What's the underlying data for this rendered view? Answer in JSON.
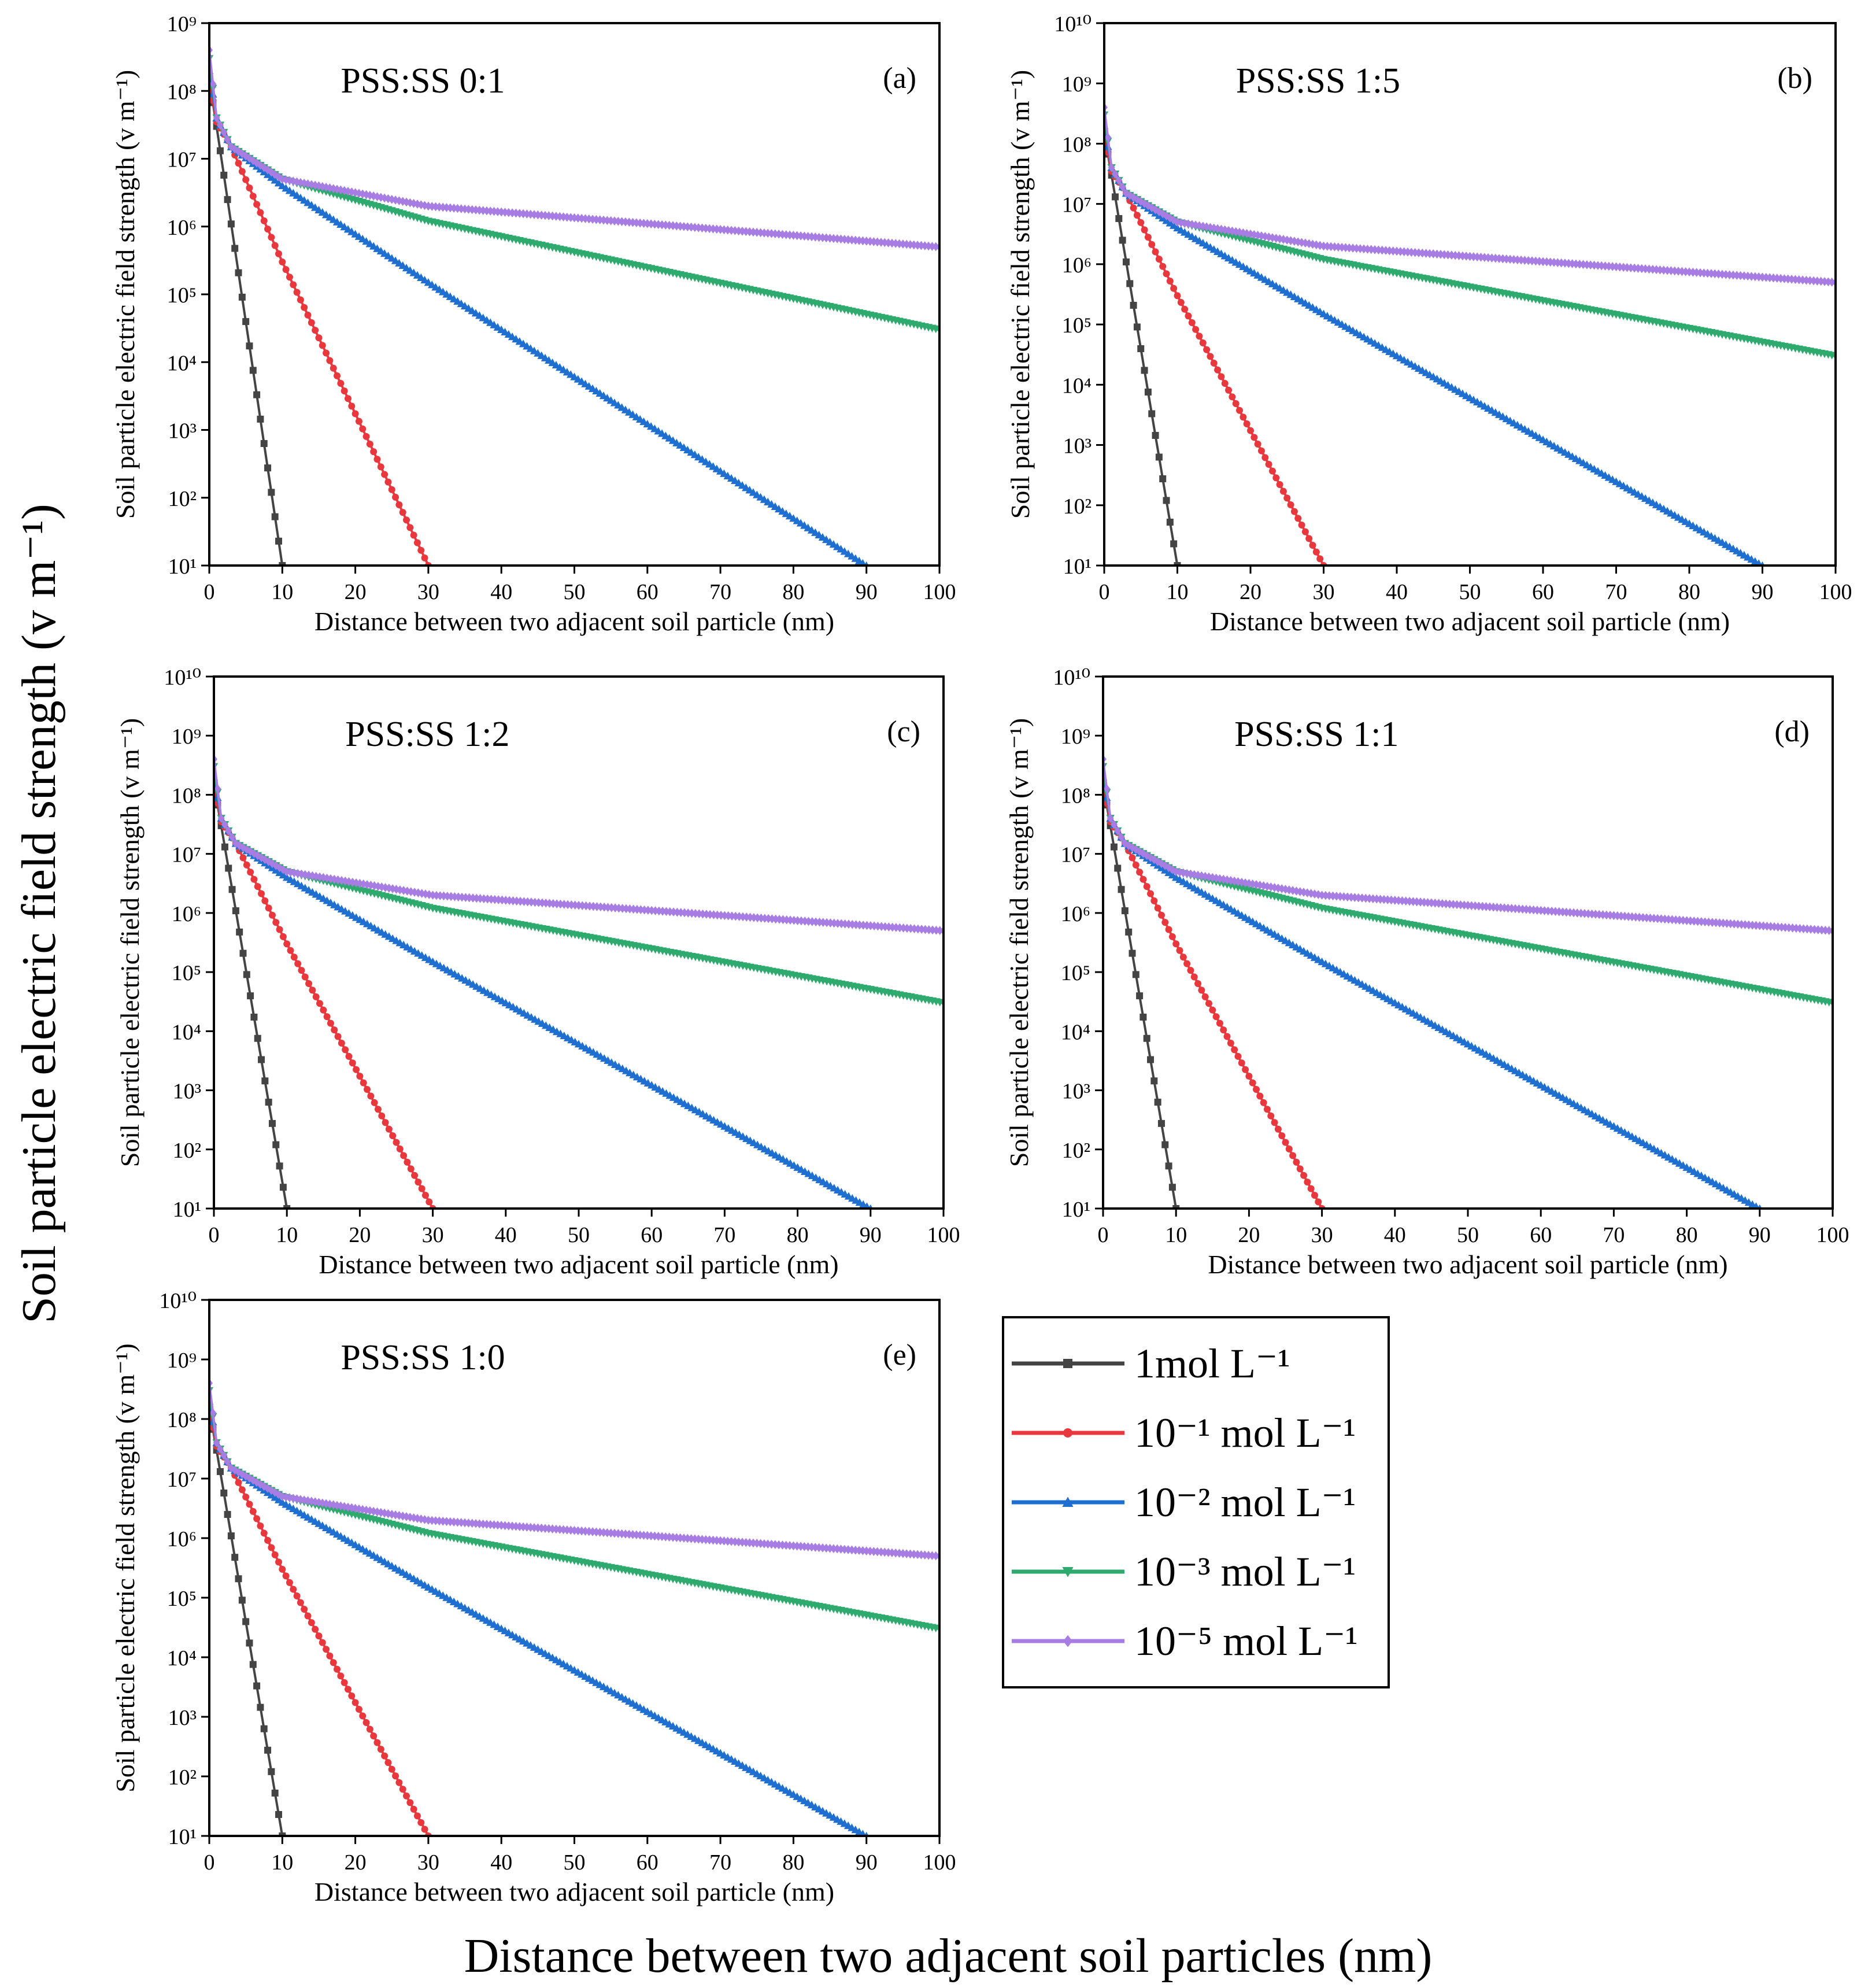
{
  "figure": {
    "global_ylabel": "Soil particle electric field strength (v m⁻¹)",
    "global_xlabel": "Distance between two adjacent soil particles (nm)"
  },
  "legend": {
    "items": [
      {
        "label": "1mol L⁻¹",
        "color": "#444444",
        "marker": "square"
      },
      {
        "label": "10⁻¹ mol L⁻¹",
        "color": "#e8383d",
        "marker": "circle"
      },
      {
        "label": "10⁻² mol L⁻¹",
        "color": "#1e6fd0",
        "marker": "triangle-up"
      },
      {
        "label": "10⁻³ mol L⁻¹",
        "color": "#2eaa6e",
        "marker": "triangle-down"
      },
      {
        "label": "10⁻⁵ mol L⁻¹",
        "color": "#a77de3",
        "marker": "diamond"
      }
    ]
  },
  "chart_data": [
    {
      "type": "line",
      "panel": "(a)",
      "title": "PSS:SS 0:1",
      "xlabel": "Distance between two adjacent soil particle (nm)",
      "ylabel": "Soil particle electric field strength (v m⁻¹)",
      "xlim": [
        0,
        100
      ],
      "ylim_log10": [
        1,
        9
      ],
      "xticks": [
        0,
        10,
        20,
        30,
        40,
        50,
        60,
        70,
        80,
        90,
        100
      ],
      "yscale": "log",
      "series": [
        {
          "name": "1mol L⁻¹",
          "x": [
            0,
            1,
            10
          ],
          "y": [
            150000000,
            30000000,
            10
          ]
        },
        {
          "name": "10⁻¹ mol L⁻¹",
          "x": [
            0,
            1,
            3,
            10,
            30
          ],
          "y": [
            150000000,
            35000000,
            15000000,
            300000,
            10
          ]
        },
        {
          "name": "10⁻² mol L⁻¹",
          "x": [
            0,
            1,
            3,
            10,
            30,
            90
          ],
          "y": [
            200000000,
            40000000,
            15000000,
            4000000,
            150000,
            10
          ]
        },
        {
          "name": "10⁻³ mol L⁻¹",
          "x": [
            0,
            1,
            3,
            10,
            30,
            100
          ],
          "y": [
            300000000,
            40000000,
            15000000,
            5000000,
            1200000,
            30000
          ]
        },
        {
          "name": "10⁻⁵ mol L⁻¹",
          "x": [
            0,
            1,
            3,
            10,
            30,
            100
          ],
          "y": [
            400000000,
            40000000,
            15000000,
            5000000,
            2000000,
            500000
          ]
        }
      ]
    },
    {
      "type": "line",
      "panel": "(b)",
      "title": "PSS:SS 1:5",
      "xlabel": "Distance between two adjacent soil particle (nm)",
      "ylabel": "Soil particle electric field strength (v m⁻¹)",
      "xlim": [
        0,
        100
      ],
      "ylim_log10": [
        1,
        10
      ],
      "xticks": [
        0,
        10,
        20,
        30,
        40,
        50,
        60,
        70,
        80,
        90,
        100
      ],
      "yscale": "log",
      "series": [
        {
          "name": "1mol L⁻¹",
          "x": [
            0,
            1,
            10
          ],
          "y": [
            150000000,
            30000000,
            10
          ]
        },
        {
          "name": "10⁻¹ mol L⁻¹",
          "x": [
            0,
            1,
            3,
            10,
            30
          ],
          "y": [
            150000000,
            35000000,
            15000000,
            300000,
            10
          ]
        },
        {
          "name": "10⁻² mol L⁻¹",
          "x": [
            0,
            1,
            3,
            10,
            30,
            90
          ],
          "y": [
            200000000,
            40000000,
            15000000,
            4000000,
            150000,
            10
          ]
        },
        {
          "name": "10⁻³ mol L⁻¹",
          "x": [
            0,
            1,
            3,
            10,
            30,
            100
          ],
          "y": [
            300000000,
            40000000,
            15000000,
            5000000,
            1200000,
            30000
          ]
        },
        {
          "name": "10⁻⁵ mol L⁻¹",
          "x": [
            0,
            1,
            3,
            10,
            30,
            100
          ],
          "y": [
            400000000,
            40000000,
            15000000,
            5000000,
            2000000,
            500000
          ]
        }
      ]
    },
    {
      "type": "line",
      "panel": "(c)",
      "title": "PSS:SS 1:2",
      "xlabel": "Distance between two adjacent soil particle (nm)",
      "ylabel": "Soil particle electric field strength (v m⁻¹)",
      "xlim": [
        0,
        100
      ],
      "ylim_log10": [
        1,
        10
      ],
      "xticks": [
        0,
        10,
        20,
        30,
        40,
        50,
        60,
        70,
        80,
        90,
        100
      ],
      "yscale": "log",
      "series": [
        {
          "name": "1mol L⁻¹",
          "x": [
            0,
            1,
            10
          ],
          "y": [
            150000000,
            30000000,
            10
          ]
        },
        {
          "name": "10⁻¹ mol L⁻¹",
          "x": [
            0,
            1,
            3,
            10,
            30
          ],
          "y": [
            150000000,
            35000000,
            15000000,
            300000,
            10
          ]
        },
        {
          "name": "10⁻² mol L⁻¹",
          "x": [
            0,
            1,
            3,
            10,
            30,
            90
          ],
          "y": [
            200000000,
            40000000,
            15000000,
            4000000,
            150000,
            10
          ]
        },
        {
          "name": "10⁻³ mol L⁻¹",
          "x": [
            0,
            1,
            3,
            10,
            30,
            100
          ],
          "y": [
            300000000,
            40000000,
            15000000,
            5000000,
            1200000,
            30000
          ]
        },
        {
          "name": "10⁻⁵ mol L⁻¹",
          "x": [
            0,
            1,
            3,
            10,
            30,
            100
          ],
          "y": [
            400000000,
            40000000,
            15000000,
            5000000,
            2000000,
            500000
          ]
        }
      ]
    },
    {
      "type": "line",
      "panel": "(d)",
      "title": "PSS:SS 1:1",
      "xlabel": "Distance between two adjacent soil particle (nm)",
      "ylabel": "Soil particle electric field strength (v m⁻¹)",
      "xlim": [
        0,
        100
      ],
      "ylim_log10": [
        1,
        10
      ],
      "xticks": [
        0,
        10,
        20,
        30,
        40,
        50,
        60,
        70,
        80,
        90,
        100
      ],
      "yscale": "log",
      "series": [
        {
          "name": "1mol L⁻¹",
          "x": [
            0,
            1,
            10
          ],
          "y": [
            150000000,
            30000000,
            10
          ]
        },
        {
          "name": "10⁻¹ mol L⁻¹",
          "x": [
            0,
            1,
            3,
            10,
            30
          ],
          "y": [
            150000000,
            35000000,
            15000000,
            300000,
            10
          ]
        },
        {
          "name": "10⁻² mol L⁻¹",
          "x": [
            0,
            1,
            3,
            10,
            30,
            90
          ],
          "y": [
            200000000,
            40000000,
            15000000,
            4000000,
            150000,
            10
          ]
        },
        {
          "name": "10⁻³ mol L⁻¹",
          "x": [
            0,
            1,
            3,
            10,
            30,
            100
          ],
          "y": [
            300000000,
            40000000,
            15000000,
            5000000,
            1200000,
            30000
          ]
        },
        {
          "name": "10⁻⁵ mol L⁻¹",
          "x": [
            0,
            1,
            3,
            10,
            30,
            100
          ],
          "y": [
            400000000,
            40000000,
            15000000,
            5000000,
            2000000,
            500000
          ]
        }
      ]
    },
    {
      "type": "line",
      "panel": "(e)",
      "title": "PSS:SS 1:0",
      "xlabel": "Distance between two adjacent soil particle (nm)",
      "ylabel": "Soil particle electric field strength (v m⁻¹)",
      "xlim": [
        0,
        100
      ],
      "ylim_log10": [
        1,
        10
      ],
      "xticks": [
        0,
        10,
        20,
        30,
        40,
        50,
        60,
        70,
        80,
        90,
        100
      ],
      "yscale": "log",
      "series": [
        {
          "name": "1mol L⁻¹",
          "x": [
            0,
            1,
            10
          ],
          "y": [
            150000000,
            30000000,
            10
          ]
        },
        {
          "name": "10⁻¹ mol L⁻¹",
          "x": [
            0,
            1,
            3,
            10,
            30
          ],
          "y": [
            150000000,
            35000000,
            15000000,
            300000,
            10
          ]
        },
        {
          "name": "10⁻² mol L⁻¹",
          "x": [
            0,
            1,
            3,
            10,
            30,
            90
          ],
          "y": [
            200000000,
            40000000,
            15000000,
            4000000,
            150000,
            10
          ]
        },
        {
          "name": "10⁻³ mol L⁻¹",
          "x": [
            0,
            1,
            3,
            10,
            30,
            100
          ],
          "y": [
            300000000,
            40000000,
            15000000,
            5000000,
            1200000,
            30000
          ]
        },
        {
          "name": "10⁻⁵ mol L⁻¹",
          "x": [
            0,
            1,
            3,
            10,
            30,
            100
          ],
          "y": [
            400000000,
            40000000,
            15000000,
            5000000,
            2000000,
            500000
          ]
        }
      ]
    }
  ]
}
